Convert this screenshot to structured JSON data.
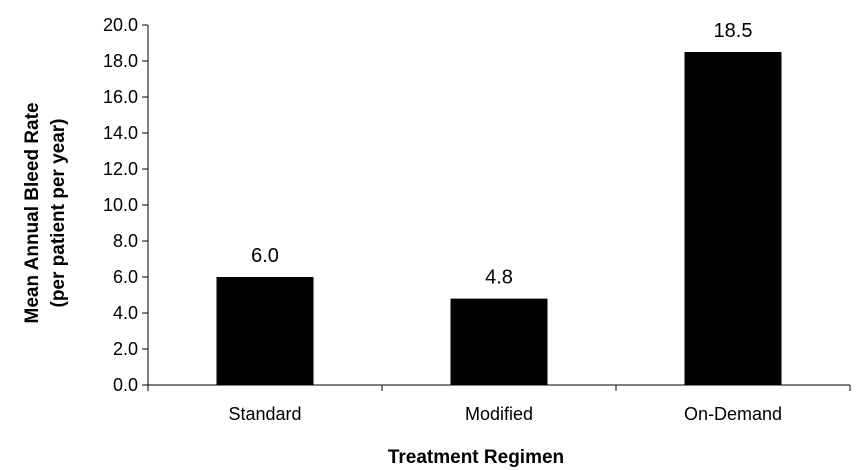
{
  "chart_data": {
    "type": "bar",
    "title": "",
    "xlabel": "Treatment Regimen",
    "ylabel_lines": [
      "Mean Annual Bleed Rate",
      "(per patient per year)"
    ],
    "categories": [
      "Standard",
      "Modified",
      "On-Demand"
    ],
    "values": [
      6.0,
      4.8,
      18.5
    ],
    "value_labels": [
      "6.0",
      "4.8",
      "18.5"
    ],
    "ylim": [
      0,
      20
    ],
    "ytick_step": 2,
    "ytick_decimals": 1,
    "grid": false,
    "bar_color": "#000000",
    "axis_color": "#000000"
  }
}
